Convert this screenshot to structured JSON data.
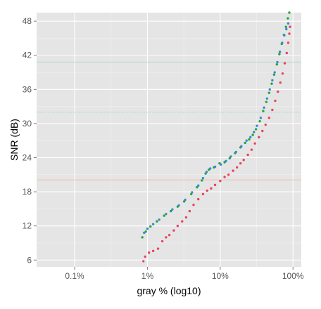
{
  "chart_data": {
    "type": "scatter",
    "title": "",
    "xlabel": "gray % (log10)",
    "ylabel": "SNR (dB)",
    "x_scale": "log10",
    "xlim": [
      0.03,
      130
    ],
    "ylim": [
      4.8,
      49.5
    ],
    "grid": true,
    "legend": "none",
    "x_ticks": [
      {
        "value": 0.1,
        "label": "0.1%"
      },
      {
        "value": 1,
        "label": "1%"
      },
      {
        "value": 10,
        "label": "10%"
      },
      {
        "value": 100,
        "label": "100%"
      }
    ],
    "y_ticks": [
      {
        "value": 6,
        "label": "6"
      },
      {
        "value": 12,
        "label": "12"
      },
      {
        "value": 18,
        "label": "18"
      },
      {
        "value": 24,
        "label": "24"
      },
      {
        "value": 30,
        "label": "30"
      },
      {
        "value": 36,
        "label": "36"
      },
      {
        "value": 42,
        "label": "42"
      },
      {
        "value": 48,
        "label": "48"
      }
    ],
    "reference_lines": [
      {
        "y": 40.8,
        "color": "#b8dcc8",
        "style": "solid"
      },
      {
        "y": 32.0,
        "color": "#a8dcd2",
        "style": "dotted"
      },
      {
        "y": 20.1,
        "color": "#f2c4bc",
        "style": "solid"
      }
    ],
    "series": [
      {
        "color": "#e8435f",
        "points": [
          [
            0.88,
            5.8
          ],
          [
            0.93,
            6.6
          ],
          [
            1.05,
            7.3
          ],
          [
            1.2,
            7.6
          ],
          [
            1.4,
            8.0
          ],
          [
            1.6,
            9.3
          ],
          [
            1.8,
            10.0
          ],
          [
            2.0,
            10.4
          ],
          [
            2.3,
            11.2
          ],
          [
            2.6,
            12.0
          ],
          [
            3.0,
            12.8
          ],
          [
            3.4,
            13.5
          ],
          [
            3.8,
            14.6
          ],
          [
            4.3,
            15.7
          ],
          [
            5.0,
            16.7
          ],
          [
            5.8,
            17.6
          ],
          [
            6.6,
            18.2
          ],
          [
            7.5,
            18.6
          ],
          [
            8.5,
            19.2
          ],
          [
            10.0,
            19.9
          ],
          [
            11.5,
            20.6
          ],
          [
            13.0,
            21.0
          ],
          [
            15.0,
            21.7
          ],
          [
            17.0,
            22.3
          ],
          [
            19.0,
            23.0
          ],
          [
            21.0,
            23.6
          ],
          [
            24.0,
            24.5
          ],
          [
            27.0,
            25.4
          ],
          [
            30.0,
            26.5
          ],
          [
            34.0,
            27.6
          ],
          [
            38.0,
            28.7
          ],
          [
            42.0,
            29.8
          ],
          [
            47.0,
            31.0
          ],
          [
            52.0,
            32.4
          ],
          [
            57.0,
            34.0
          ],
          [
            62.0,
            35.6
          ],
          [
            67.0,
            37.2
          ],
          [
            72.0,
            38.8
          ],
          [
            77.0,
            40.6
          ],
          [
            82.0,
            42.4
          ],
          [
            86.0,
            44.2
          ],
          [
            89.0,
            45.8
          ],
          [
            91.0,
            47.0
          ]
        ]
      },
      {
        "color": "#22a830",
        "points": [
          [
            0.85,
            10.0
          ],
          [
            0.95,
            11.0
          ],
          [
            1.1,
            11.9
          ],
          [
            1.35,
            12.8
          ],
          [
            1.7,
            13.8
          ],
          [
            2.1,
            14.6
          ],
          [
            2.6,
            15.4
          ],
          [
            3.2,
            16.3
          ],
          [
            4.0,
            17.6
          ],
          [
            4.8,
            18.8
          ],
          [
            5.6,
            20.0
          ],
          [
            6.3,
            21.2
          ],
          [
            7.0,
            21.9
          ],
          [
            8.2,
            22.3
          ],
          [
            9.8,
            23.0
          ],
          [
            11.5,
            23.2
          ],
          [
            13.5,
            23.9
          ],
          [
            16.0,
            24.8
          ],
          [
            19.0,
            25.8
          ],
          [
            22.0,
            26.6
          ],
          [
            25.0,
            27.2
          ],
          [
            28.0,
            28.0
          ],
          [
            31.0,
            29.0
          ],
          [
            35.0,
            30.4
          ],
          [
            39.0,
            32.2
          ],
          [
            43.0,
            33.8
          ],
          [
            47.0,
            35.4
          ],
          [
            51.0,
            37.0
          ],
          [
            55.0,
            38.6
          ],
          [
            60.0,
            40.4
          ],
          [
            65.0,
            42.2
          ],
          [
            70.0,
            44.0
          ],
          [
            75.0,
            45.6
          ],
          [
            80.0,
            47.0
          ],
          [
            85.0,
            48.5
          ],
          [
            89.0,
            49.5
          ]
        ]
      },
      {
        "color": "#3b87d8",
        "points": [
          [
            0.9,
            10.8
          ],
          [
            1.0,
            11.5
          ],
          [
            1.2,
            12.3
          ],
          [
            1.45,
            13.1
          ],
          [
            1.8,
            14.1
          ],
          [
            2.2,
            14.9
          ],
          [
            2.7,
            15.6
          ],
          [
            3.3,
            16.6
          ],
          [
            4.1,
            17.9
          ],
          [
            5.0,
            19.1
          ],
          [
            5.8,
            20.4
          ],
          [
            6.5,
            21.5
          ],
          [
            7.3,
            22.1
          ],
          [
            8.5,
            22.4
          ],
          [
            10.2,
            22.8
          ],
          [
            12.0,
            23.4
          ],
          [
            14.0,
            24.2
          ],
          [
            16.5,
            25.0
          ],
          [
            19.5,
            26.0
          ],
          [
            23.0,
            27.0
          ],
          [
            26.0,
            27.6
          ],
          [
            29.0,
            28.5
          ],
          [
            32.0,
            29.6
          ],
          [
            36.0,
            31.0
          ],
          [
            40.0,
            32.8
          ],
          [
            44.0,
            34.4
          ],
          [
            48.0,
            36.0
          ],
          [
            52.0,
            37.6
          ],
          [
            56.0,
            39.0
          ],
          [
            61.0,
            40.8
          ],
          [
            66.0,
            42.6
          ],
          [
            71.0,
            44.2
          ],
          [
            76.0,
            45.5
          ],
          [
            81.0,
            46.6
          ],
          [
            86.0,
            47.6
          ]
        ]
      }
    ]
  }
}
